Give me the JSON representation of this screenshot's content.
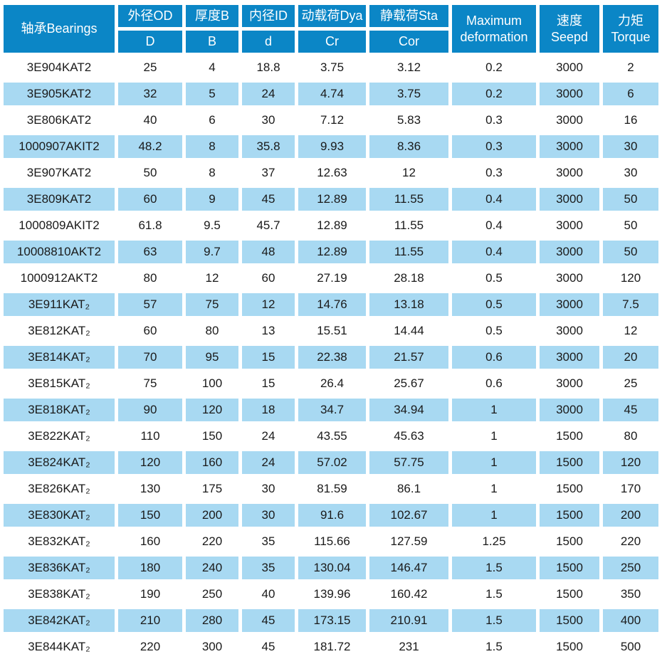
{
  "table": {
    "header": {
      "bearings": "轴承Bearings",
      "grouped": [
        {
          "label": "外径OD",
          "sub": "D"
        },
        {
          "label": "厚度B",
          "sub": "B"
        },
        {
          "label": "内径ID",
          "sub": "d"
        },
        {
          "label": "动载荷Dya",
          "sub": "Cr"
        },
        {
          "label": "静载荷Sta",
          "sub": "Cor"
        }
      ],
      "merged": [
        {
          "line1": "Maximum",
          "line2": "deformation"
        },
        {
          "line1": "速度",
          "line2": "Seepd"
        },
        {
          "line1": "力矩",
          "line2": "Torque"
        }
      ]
    },
    "rows": [
      [
        "3E904KAT2",
        "25",
        "4",
        "18.8",
        "3.75",
        "3.12",
        "0.2",
        "3000",
        "2"
      ],
      [
        "3E905KAT2",
        "32",
        "5",
        "24",
        "4.74",
        "3.75",
        "0.2",
        "3000",
        "6"
      ],
      [
        "3E806KAT2",
        "40",
        "6",
        "30",
        "7.12",
        "5.83",
        "0.3",
        "3000",
        "16"
      ],
      [
        "1000907AKIT2",
        "48.2",
        "8",
        "35.8",
        "9.93",
        "8.36",
        "0.3",
        "3000",
        "30"
      ],
      [
        "3E907KAT2",
        "50",
        "8",
        "37",
        "12.63",
        "12",
        "0.3",
        "3000",
        "30"
      ],
      [
        "3E809KAT2",
        "60",
        "9",
        "45",
        "12.89",
        "11.55",
        "0.4",
        "3000",
        "50"
      ],
      [
        "1000809AKIT2",
        "61.8",
        "9.5",
        "45.7",
        "12.89",
        "11.55",
        "0.4",
        "3000",
        "50"
      ],
      [
        "10008810AKT2",
        "63",
        "9.7",
        "48",
        "12.89",
        "11.55",
        "0.4",
        "3000",
        "50"
      ],
      [
        "1000912AKT2",
        "80",
        "12",
        "60",
        "27.19",
        "28.18",
        "0.5",
        "3000",
        "120"
      ],
      [
        "3E911KAT₂",
        "57",
        "75",
        "12",
        "14.76",
        "13.18",
        "0.5",
        "3000",
        "7.5"
      ],
      [
        "3E812KAT₂",
        "60",
        "80",
        "13",
        "15.51",
        "14.44",
        "0.5",
        "3000",
        "12"
      ],
      [
        "3E814KAT₂",
        "70",
        "95",
        "15",
        "22.38",
        "21.57",
        "0.6",
        "3000",
        "20"
      ],
      [
        "3E815KAT₂",
        "75",
        "100",
        "15",
        "26.4",
        "25.67",
        "0.6",
        "3000",
        "25"
      ],
      [
        "3E818KAT₂",
        "90",
        "120",
        "18",
        "34.7",
        "34.94",
        "1",
        "3000",
        "45"
      ],
      [
        "3E822KAT₂",
        "110",
        "150",
        "24",
        "43.55",
        "45.63",
        "1",
        "1500",
        "80"
      ],
      [
        "3E824KAT₂",
        "120",
        "160",
        "24",
        "57.02",
        "57.75",
        "1",
        "1500",
        "120"
      ],
      [
        "3E826KAT₂",
        "130",
        "175",
        "30",
        "81.59",
        "86.1",
        "1",
        "1500",
        "170"
      ],
      [
        "3E830KAT₂",
        "150",
        "200",
        "30",
        "91.6",
        "102.67",
        "1",
        "1500",
        "200"
      ],
      [
        "3E832KAT₂",
        "160",
        "220",
        "35",
        "115.66",
        "127.59",
        "1.25",
        "1500",
        "220"
      ],
      [
        "3E836KAT₂",
        "180",
        "240",
        "35",
        "130.04",
        "146.47",
        "1.5",
        "1500",
        "250"
      ],
      [
        "3E838KAT₂",
        "190",
        "250",
        "40",
        "139.96",
        "160.42",
        "1.5",
        "1500",
        "350"
      ],
      [
        "3E842KAT₂",
        "210",
        "280",
        "45",
        "173.15",
        "210.91",
        "1.5",
        "1500",
        "400"
      ],
      [
        "3E844KAT₂",
        "220",
        "300",
        "45",
        "181.72",
        "231",
        "1.5",
        "1500",
        "500"
      ]
    ]
  },
  "colors": {
    "header_bg": "#0b86c6",
    "row_alt_bg": "#a8d9f2",
    "header_text": "#ffffff",
    "cell_text": "#1a1a1a"
  }
}
